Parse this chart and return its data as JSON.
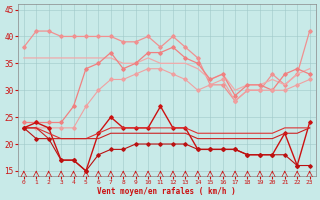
{
  "xlabel": "Vent moyen/en rafales ( km/h )",
  "ylim": [
    14,
    46
  ],
  "xlim": [
    -0.5,
    23.5
  ],
  "yticks": [
    15,
    20,
    25,
    30,
    35,
    40,
    45
  ],
  "xticks": [
    0,
    1,
    2,
    3,
    4,
    5,
    6,
    7,
    8,
    9,
    10,
    11,
    12,
    13,
    14,
    15,
    16,
    17,
    18,
    19,
    20,
    21,
    22,
    23
  ],
  "bg_color": "#c8eae8",
  "grid_color": "#a0c8c8",
  "lines": [
    {
      "y": [
        38,
        41,
        41,
        40,
        40,
        40,
        40,
        40,
        39,
        39,
        40,
        38,
        40,
        38,
        36,
        31,
        31,
        28,
        30,
        30,
        33,
        31,
        33,
        41
      ],
      "color": "#f09090",
      "lw": 0.9,
      "marker": "D",
      "ms": 1.8
    },
    {
      "y": [
        36,
        36,
        36,
        36,
        36,
        36,
        36,
        36,
        35,
        35,
        36,
        35,
        35,
        35,
        34,
        32,
        33,
        30,
        31,
        31,
        32,
        31,
        33,
        34
      ],
      "color": "#f0aaaa",
      "lw": 0.9,
      "marker": null,
      "ms": 0
    },
    {
      "y": [
        24,
        24,
        24,
        24,
        27,
        34,
        35,
        37,
        34,
        35,
        37,
        37,
        38,
        36,
        35,
        32,
        33,
        29,
        31,
        31,
        30,
        33,
        34,
        33
      ],
      "color": "#f08080",
      "lw": 0.9,
      "marker": "D",
      "ms": 1.8
    },
    {
      "y": [
        23,
        23,
        23,
        23,
        23,
        27,
        30,
        32,
        32,
        33,
        34,
        34,
        33,
        32,
        30,
        31,
        32,
        28,
        30,
        30,
        30,
        30,
        31,
        32
      ],
      "color": "#f0a0a0",
      "lw": 0.8,
      "marker": "D",
      "ms": 1.8
    },
    {
      "y": [
        23,
        24,
        23,
        17,
        17,
        15,
        22,
        25,
        23,
        23,
        23,
        27,
        23,
        23,
        19,
        19,
        19,
        19,
        18,
        18,
        18,
        22,
        16,
        24
      ],
      "color": "#cc1111",
      "lw": 1.0,
      "marker": "D",
      "ms": 1.8
    },
    {
      "y": [
        23,
        23,
        22,
        21,
        21,
        21,
        22,
        23,
        23,
        23,
        23,
        23,
        23,
        23,
        22,
        22,
        22,
        22,
        22,
        22,
        22,
        23,
        23,
        23
      ],
      "color": "#dd3333",
      "lw": 0.8,
      "marker": null,
      "ms": 0
    },
    {
      "y": [
        23,
        23,
        21,
        21,
        21,
        21,
        21,
        22,
        22,
        22,
        22,
        22,
        22,
        22,
        21,
        21,
        21,
        21,
        21,
        21,
        21,
        22,
        22,
        23
      ],
      "color": "#cc2222",
      "lw": 0.8,
      "marker": null,
      "ms": 0
    },
    {
      "y": [
        23,
        21,
        21,
        17,
        17,
        15,
        18,
        19,
        19,
        20,
        20,
        20,
        20,
        20,
        19,
        19,
        19,
        19,
        18,
        18,
        18,
        18,
        16,
        16
      ],
      "color": "#bb1111",
      "lw": 0.8,
      "marker": "D",
      "ms": 1.8
    }
  ],
  "arrow_color": "#cc1111"
}
